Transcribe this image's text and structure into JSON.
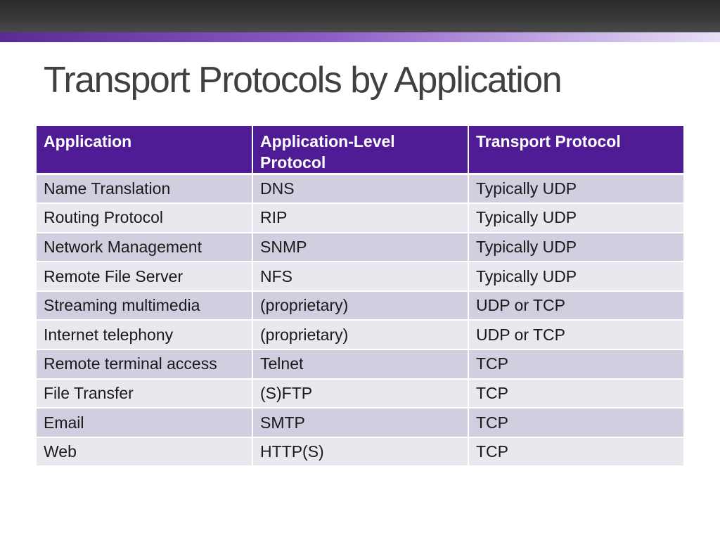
{
  "slide": {
    "title": "Transport Protocols by Application"
  },
  "table": {
    "headers": [
      "Application",
      "Application-Level Protocol",
      "Transport Protocol"
    ],
    "rows": [
      [
        "Name Translation",
        "DNS",
        "Typically UDP"
      ],
      [
        "Routing Protocol",
        "RIP",
        "Typically UDP"
      ],
      [
        "Network Management",
        "SNMP",
        "Typically UDP"
      ],
      [
        "Remote File Server",
        "NFS",
        "Typically UDP"
      ],
      [
        "Streaming multimedia",
        "(proprietary)",
        "UDP or TCP"
      ],
      [
        "Internet telephony",
        "(proprietary)",
        "UDP or TCP"
      ],
      [
        "Remote terminal access",
        "Telnet",
        "TCP"
      ],
      [
        "File Transfer",
        "(S)FTP",
        "TCP"
      ],
      [
        "Email",
        "SMTP",
        "TCP"
      ],
      [
        "Web",
        "HTTP(S)",
        "TCP"
      ]
    ]
  },
  "colors": {
    "header_bg": "#501c96",
    "row_odd": "#d2cee0",
    "row_even": "#e9e8ef",
    "title_text": "#404040"
  }
}
